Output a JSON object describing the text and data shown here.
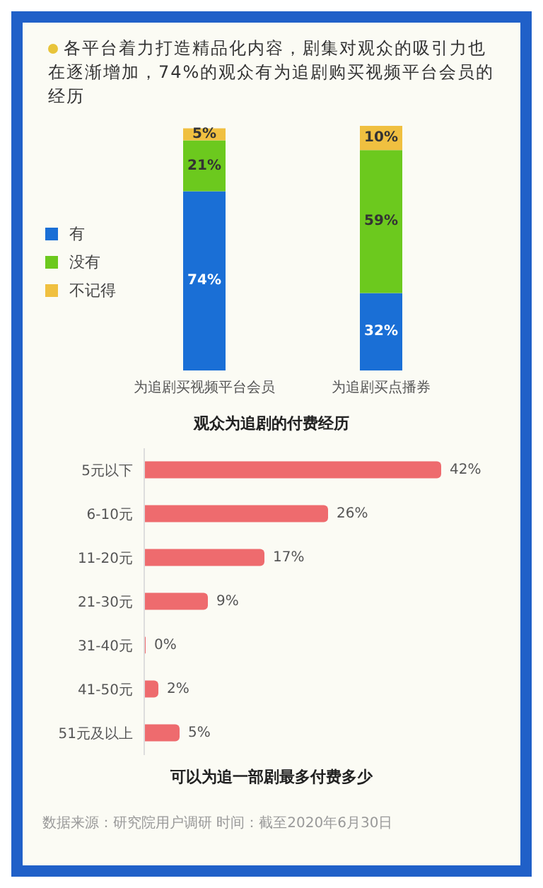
{
  "chart_data": [
    {
      "type": "bar",
      "stacked": true,
      "subtitle": "各平台着力打造精品化内容，剧集对观众的吸引力也在逐渐增加，74%的观众有为追剧购买视频平台会员的经历",
      "title": "观众为追剧的付费经历",
      "categories": [
        "为追剧买视频平台会员",
        "为追剧买点播券"
      ],
      "series": [
        {
          "name": "有",
          "color": "#1a6fd6",
          "values": [
            74,
            32
          ],
          "value_labels": [
            "74%",
            "32%"
          ]
        },
        {
          "name": "没有",
          "color": "#6cc91e",
          "values": [
            21,
            59
          ],
          "value_labels": [
            "21%",
            "59%"
          ]
        },
        {
          "name": "不记得",
          "color": "#f0c040",
          "values": [
            5,
            10
          ],
          "value_labels": [
            "5%",
            "10%"
          ]
        }
      ],
      "legend": "left",
      "tick_labels": "x"
    },
    {
      "type": "bar",
      "orientation": "horizontal",
      "title": "可以为追一部剧最多付费多少",
      "categories": [
        "5元以下",
        "6-10元",
        "11-20元",
        "21-30元",
        "31-40元",
        "41-50元",
        "51元及以上"
      ],
      "values": [
        42,
        26,
        17,
        9,
        0,
        2,
        5
      ],
      "value_labels": [
        "42%",
        "26%",
        "17%",
        "9%",
        "0%",
        "2%",
        "5%"
      ],
      "color": "#ee6b6e",
      "tick_labels": "y",
      "annotations": [
        "数据来源：研究院用户调研 时间：截至2020年6月30日"
      ]
    }
  ]
}
